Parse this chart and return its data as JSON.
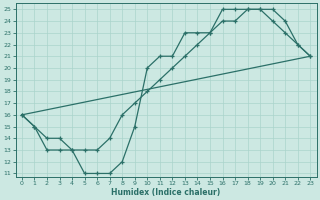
{
  "xlabel": "Humidex (Indice chaleur)",
  "xlim": [
    -0.5,
    23.5
  ],
  "ylim": [
    10.7,
    25.5
  ],
  "xticks": [
    0,
    1,
    2,
    3,
    4,
    5,
    6,
    7,
    8,
    9,
    10,
    11,
    12,
    13,
    14,
    15,
    16,
    17,
    18,
    19,
    20,
    21,
    22,
    23
  ],
  "yticks": [
    11,
    12,
    13,
    14,
    15,
    16,
    17,
    18,
    19,
    20,
    21,
    22,
    23,
    24,
    25
  ],
  "bg_color": "#cce8e2",
  "line_color": "#2b7068",
  "grid_color": "#aad4cc",
  "curve1_x": [
    0,
    1,
    2,
    3,
    4,
    5,
    6,
    7,
    8,
    9,
    10,
    11,
    12,
    13,
    14,
    15,
    16,
    17,
    18,
    19,
    20,
    21,
    22,
    23
  ],
  "curve1_y": [
    16,
    15,
    13,
    13,
    13,
    11,
    11,
    11,
    12,
    15,
    20,
    21,
    21,
    23,
    23,
    23,
    25,
    25,
    25,
    25,
    24,
    23,
    22,
    21
  ],
  "curve2_x": [
    0,
    1,
    2,
    3,
    4,
    5,
    6,
    7,
    8,
    9,
    10,
    11,
    12,
    13,
    14,
    15,
    16,
    17,
    18,
    19,
    20,
    21,
    22,
    23
  ],
  "curve2_y": [
    16,
    15,
    14,
    14,
    13,
    13,
    13,
    14,
    16,
    17,
    18,
    19,
    20,
    21,
    22,
    23,
    24,
    24,
    25,
    25,
    25,
    24,
    22,
    21
  ],
  "curve3_x": [
    0,
    23
  ],
  "curve3_y": [
    16,
    21
  ]
}
